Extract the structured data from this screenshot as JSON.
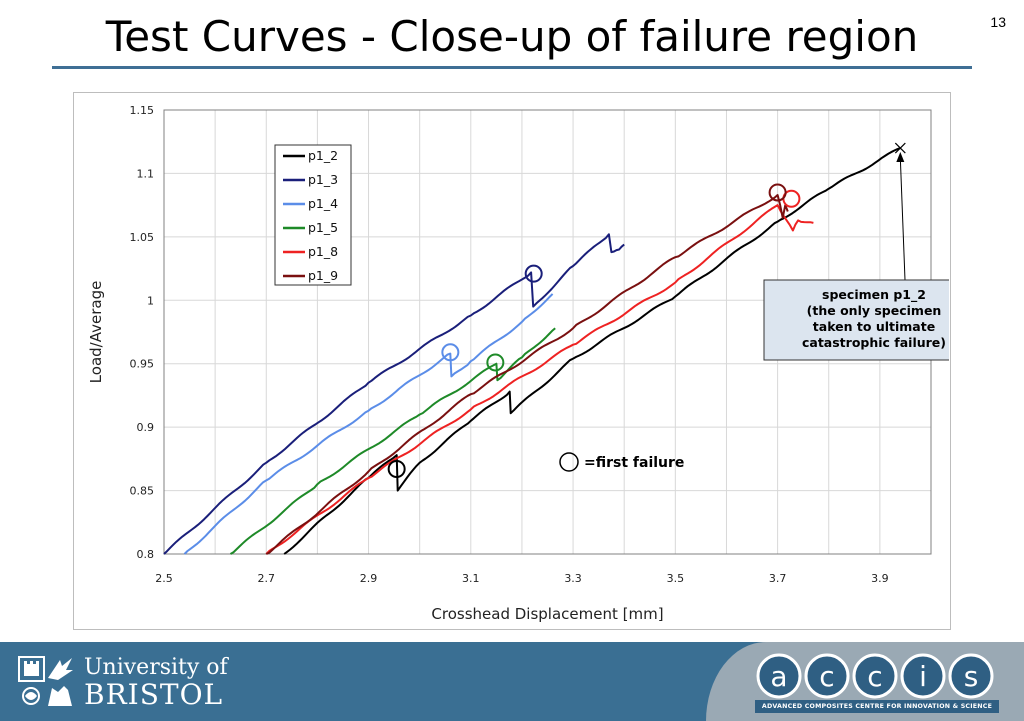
{
  "slide": {
    "title": "Test Curves - Close-up of failure region",
    "number": "13"
  },
  "footer": {
    "university_line1": "University of",
    "university_line2": "BRISTOL",
    "accis_letters": [
      "a",
      "c",
      "c",
      "i",
      "s"
    ],
    "accis_strap": "ADVANCED COMPOSITES CENTRE FOR INNOVATION & SCIENCE",
    "colors": {
      "band": "#3a6f93",
      "accis_panel": "#9aa9b4"
    }
  },
  "chart_data": {
    "type": "line",
    "xlabel": "Crosshead Displacement [mm]",
    "ylabel": "Load/Average",
    "xlim": [
      2.5,
      4.0
    ],
    "ylim": [
      0.8,
      1.15
    ],
    "xticks": [
      "2.5",
      "2.7",
      "2.9",
      "3.1",
      "3.3",
      "3.5",
      "3.7",
      "3.9"
    ],
    "yticks": [
      "0.8",
      "0.85",
      "0.9",
      "0.95",
      "1",
      "1.05",
      "1.1",
      "1.15"
    ],
    "grid": true,
    "legend": {
      "position": "top-left inside plot"
    },
    "series": [
      {
        "name": "p1_2",
        "color": "#000000",
        "x": [
          2.735,
          2.9,
          2.955,
          2.957,
          3.0,
          3.1,
          3.176,
          3.178,
          3.3,
          3.5,
          3.7,
          3.8,
          3.94
        ],
        "y": [
          0.8,
          0.86,
          0.878,
          0.85,
          0.872,
          0.905,
          0.928,
          0.911,
          0.954,
          1.003,
          1.062,
          1.088,
          1.12
        ],
        "first_failure": {
          "x": 2.955,
          "y": 0.867
        }
      },
      {
        "name": "p1_3",
        "color": "#1a1f7a",
        "x": [
          2.5,
          2.7,
          2.9,
          3.1,
          3.218,
          3.222,
          3.3,
          3.37,
          3.375,
          3.39,
          3.4
        ],
        "y": [
          0.8,
          0.872,
          0.935,
          0.988,
          1.022,
          0.995,
          1.027,
          1.052,
          1.038,
          1.04,
          1.044
        ],
        "first_failure": {
          "x": 3.223,
          "y": 1.021
        }
      },
      {
        "name": "p1_4",
        "color": "#5b8de8",
        "x": [
          2.54,
          2.7,
          2.9,
          3.06,
          3.062,
          3.1,
          3.2,
          3.26
        ],
        "y": [
          0.8,
          0.858,
          0.913,
          0.958,
          0.94,
          0.952,
          0.983,
          1.005
        ],
        "first_failure": {
          "x": 3.06,
          "y": 0.959
        }
      },
      {
        "name": "p1_5",
        "color": "#1e8a28",
        "x": [
          2.63,
          2.8,
          3.0,
          3.15,
          3.152,
          3.2,
          3.265
        ],
        "y": [
          0.8,
          0.855,
          0.91,
          0.95,
          0.937,
          0.955,
          0.978
        ],
        "first_failure": {
          "x": 3.148,
          "y": 0.951
        }
      },
      {
        "name": "p1_8",
        "color": "#ee2222",
        "x": [
          2.7,
          2.9,
          3.1,
          3.3,
          3.5,
          3.7,
          3.73,
          3.74,
          3.77
        ],
        "y": [
          0.8,
          0.86,
          0.914,
          0.965,
          1.014,
          1.075,
          1.055,
          1.063,
          1.061
        ],
        "first_failure": {
          "x": 3.727,
          "y": 1.08
        }
      },
      {
        "name": "p1_9",
        "color": "#7a1010",
        "x": [
          2.7,
          2.9,
          3.1,
          3.3,
          3.5,
          3.7,
          3.71,
          3.715,
          3.72
        ],
        "y": [
          0.8,
          0.865,
          0.926,
          0.978,
          1.034,
          1.083,
          1.065,
          1.075,
          1.07
        ],
        "first_failure": {
          "x": 3.7,
          "y": 1.085
        }
      }
    ],
    "annotations": {
      "first_failure_label": "=first failure",
      "callout_lines": [
        "specimen p1_2",
        "(the only specimen",
        "taken to ultimate",
        "catastrophic failure)"
      ],
      "callout_point": {
        "x": 3.94,
        "y": 1.12
      }
    }
  }
}
